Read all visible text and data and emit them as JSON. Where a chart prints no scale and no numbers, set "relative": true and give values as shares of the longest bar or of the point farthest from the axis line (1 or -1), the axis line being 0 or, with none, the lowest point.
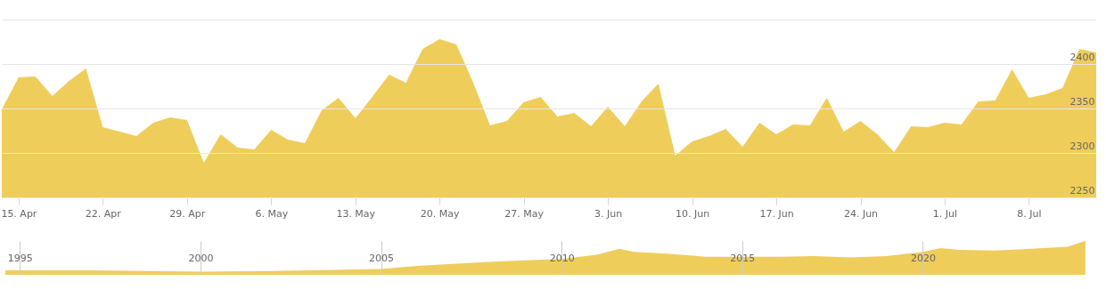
{
  "chart_data": [
    {
      "type": "area",
      "color": "#efcd5b",
      "categories": [
        null,
        "15. Apr",
        null,
        null,
        null,
        null,
        "22. Apr",
        null,
        null,
        null,
        null,
        "29. Apr",
        null,
        null,
        null,
        null,
        "6. May",
        null,
        null,
        null,
        null,
        "13. May",
        null,
        null,
        null,
        null,
        "20. May",
        null,
        null,
        null,
        null,
        "27. May",
        null,
        null,
        null,
        null,
        "3. Jun",
        null,
        null,
        null,
        null,
        "10. Jun",
        null,
        null,
        null,
        null,
        "17. Jun",
        null,
        null,
        null,
        null,
        "24. Jun",
        null,
        null,
        null,
        null,
        "1. Jul",
        null,
        null,
        null,
        null,
        "8. Jul",
        null,
        null,
        null,
        null
      ],
      "values": [
        2349,
        2385,
        2386,
        2364,
        2381,
        2395,
        2329,
        2324,
        2319,
        2334,
        2340,
        2337,
        2289,
        2321,
        2306,
        2304,
        2326,
        2315,
        2311,
        2348,
        2362,
        2339,
        2363,
        2388,
        2379,
        2417,
        2428,
        2422,
        2379,
        2331,
        2336,
        2357,
        2363,
        2341,
        2345,
        2330,
        2352,
        2330,
        2358,
        2378,
        2297,
        2313,
        2319,
        2327,
        2307,
        2334,
        2321,
        2332,
        2331,
        2362,
        2324,
        2336,
        2321,
        2301,
        2330,
        2329,
        2334,
        2332,
        2358,
        2359,
        2394,
        2362,
        2366,
        2373,
        2417,
        2413
      ],
      "ylim": [
        2250,
        2450
      ],
      "yticks": [
        2250,
        2300,
        2350,
        2400,
        {
          "value": 2450,
          "label": null
        }
      ],
      "grid": "y"
    },
    {
      "type": "area",
      "color": "#efcd5b",
      "relative": true,
      "x": [
        1994.6,
        1997,
        2000,
        2002,
        2004,
        2005,
        2006,
        2007,
        2008,
        2009,
        2010,
        2011,
        2011.6,
        2012,
        2013,
        2014,
        2015,
        2016,
        2017,
        2018,
        2019,
        2020,
        2020.5,
        2021,
        2022,
        2023,
        2024,
        2024.5
      ],
      "values": [
        0.13,
        0.13,
        0.09,
        0.11,
        0.15,
        0.17,
        0.26,
        0.32,
        0.38,
        0.43,
        0.47,
        0.6,
        0.77,
        0.68,
        0.62,
        0.53,
        0.53,
        0.53,
        0.55,
        0.51,
        0.55,
        0.68,
        0.79,
        0.74,
        0.72,
        0.77,
        0.83,
        1.0
      ],
      "xlim": [
        1994.5,
        2024.8
      ],
      "xticks": [
        1995,
        2000,
        2005,
        2010,
        2015,
        2020
      ],
      "grid": "x",
      "tick_labels": "x"
    }
  ]
}
